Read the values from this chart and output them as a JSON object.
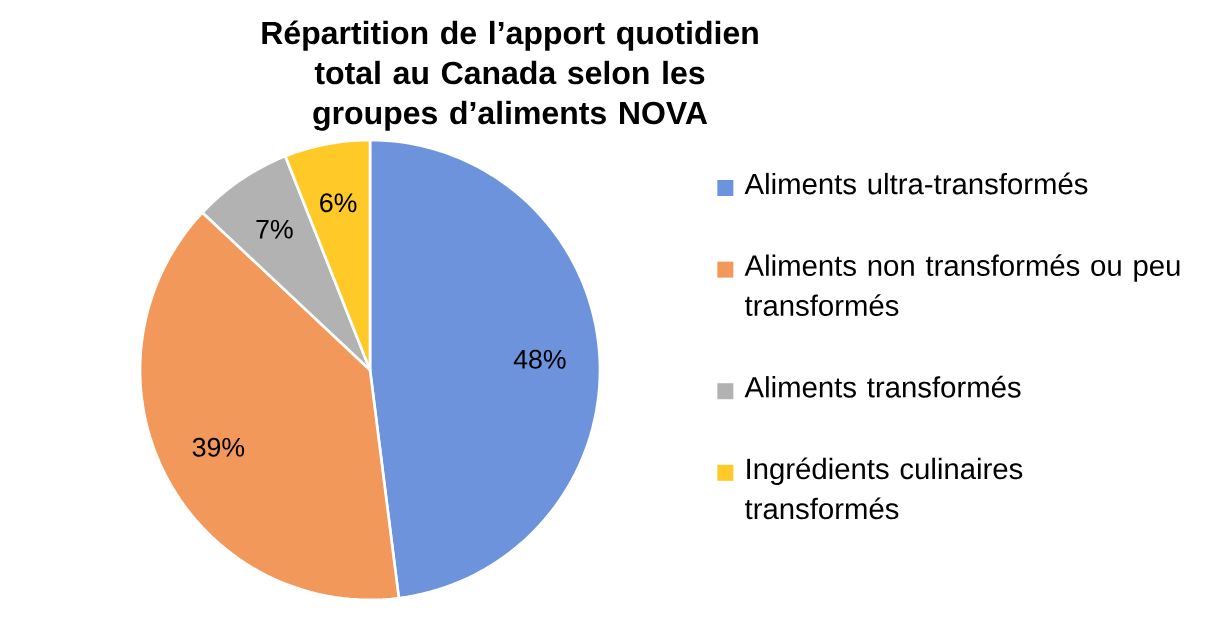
{
  "chart_data": {
    "type": "pie",
    "title": "Répartition de l’apport quotidien total au Canada selon les groupes d’aliments NOVA",
    "categories": [
      "Aliments ultra-transformés",
      "Aliments non transformés ou peu transformés",
      "Aliments transformés",
      "Ingrédients culinaires transformés"
    ],
    "values": [
      48,
      39,
      7,
      6
    ],
    "colors": [
      "#6d93dc",
      "#f2985a",
      "#b2b2b2",
      "#ffc928"
    ],
    "value_labels": [
      "48%",
      "39%",
      "7%",
      "6%"
    ],
    "legend": "right"
  }
}
